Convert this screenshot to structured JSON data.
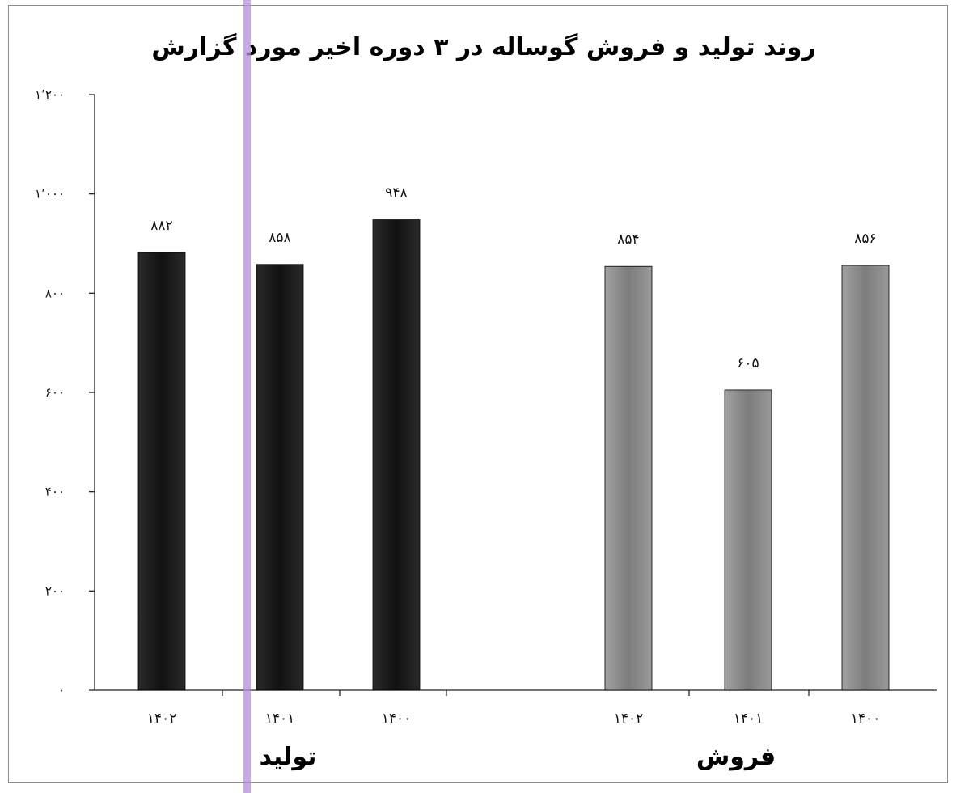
{
  "chart_data": {
    "type": "bar",
    "title": "روند تولید و فروش گوساله در ۳ دوره اخیر مورد گزارش",
    "xlabel": "",
    "ylabel": "",
    "ylim": [
      0,
      1200
    ],
    "y_ticks": [
      0,
      200,
      400,
      600,
      800,
      1000,
      1200
    ],
    "y_tick_labels": [
      "۰",
      "۲۰۰",
      "۴۰۰",
      "۶۰۰",
      "۸۰۰",
      "۱٬۰۰۰",
      "۱٬۲۰۰"
    ],
    "grid": false,
    "legend": "none",
    "series": [
      {
        "group_label": "تولید",
        "color": "#1c1c1c",
        "categories": [
          "۱۴۰۲",
          "۱۴۰۱",
          "۱۴۰۰"
        ],
        "values": [
          882,
          858,
          948
        ],
        "data_labels": [
          "۸۸۲",
          "۸۵۸",
          "۹۴۸"
        ]
      },
      {
        "group_label": "فروش",
        "color": "#8f8f8f",
        "categories": [
          "۱۴۰۲",
          "۱۴۰۱",
          "۱۴۰۰"
        ],
        "values": [
          854,
          605,
          856
        ],
        "data_labels": [
          "۸۵۴",
          "۶۰۵",
          "۸۵۶"
        ]
      }
    ]
  }
}
